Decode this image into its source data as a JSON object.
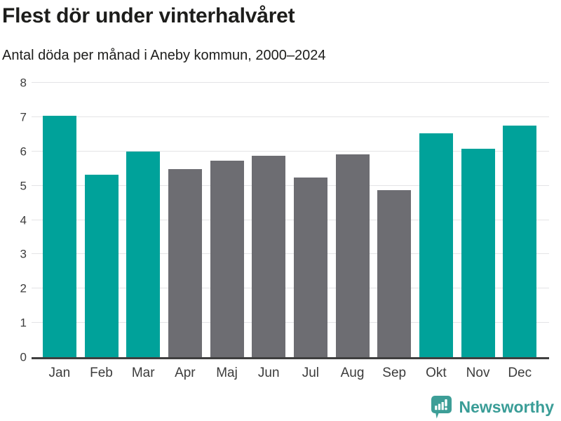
{
  "header": {
    "title": "Flest dör under vinterhalvåret",
    "subtitle": "Antal döda per månad i Aneby kommun, 2000–2024"
  },
  "footer": {
    "brand": "Newsworthy"
  },
  "colors": {
    "accent_teal": "#00a29a",
    "neutral_gray": "#6d6d72",
    "gridline": "#e4e4e6",
    "axis_line": "#3f3f3f",
    "text": "#1d1d1b",
    "tick_text": "#3c3c3c",
    "logo_teal": "#3d9e97"
  },
  "chart_data": {
    "type": "bar",
    "title": "Flest dör under vinterhalvåret",
    "subtitle": "Antal döda per månad i Aneby kommun, 2000–2024",
    "categories": [
      "Jan",
      "Feb",
      "Mar",
      "Apr",
      "Maj",
      "Jun",
      "Jul",
      "Aug",
      "Sep",
      "Okt",
      "Nov",
      "Dec"
    ],
    "values": [
      7.04,
      5.32,
      6.0,
      5.48,
      5.72,
      5.88,
      5.24,
      5.92,
      4.88,
      6.52,
      6.08,
      6.76
    ],
    "bar_colors": [
      "#00a29a",
      "#00a29a",
      "#00a29a",
      "#6d6d72",
      "#6d6d72",
      "#6d6d72",
      "#6d6d72",
      "#6d6d72",
      "#6d6d72",
      "#00a29a",
      "#00a29a",
      "#00a29a"
    ],
    "xlabel": "",
    "ylabel": "",
    "ylim": [
      0,
      8
    ],
    "yticks": [
      0,
      1,
      2,
      3,
      4,
      5,
      6,
      7,
      8
    ],
    "grid": true,
    "legend": false
  }
}
